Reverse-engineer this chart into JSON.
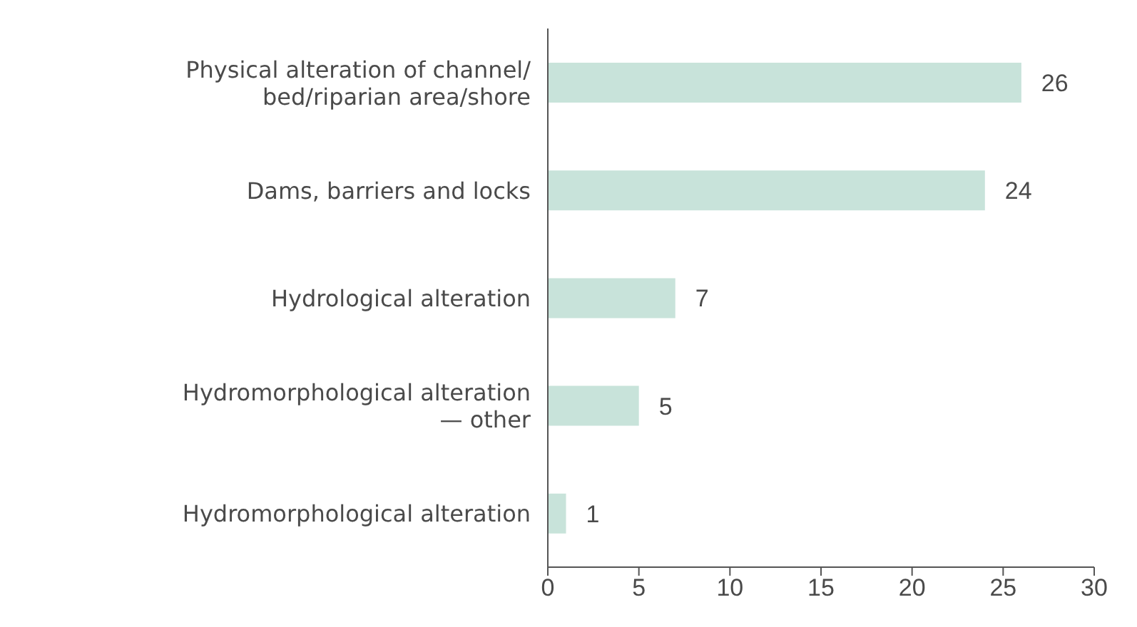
{
  "chart_data": {
    "type": "bar",
    "orientation": "horizontal",
    "categories": [
      "Physical alteration of channel/\nbed/riparian area/shore",
      "Dams, barriers and locks",
      "Hydrological alteration",
      "Hydromorphological alteration\n— other",
      "Hydromorphological alteration"
    ],
    "values": [
      26,
      24,
      7,
      5,
      1
    ],
    "color": "#c8e3da",
    "data_labels": true,
    "xlim": [
      0,
      30
    ],
    "xticks": [
      0,
      5,
      10,
      15,
      20,
      25,
      30
    ]
  }
}
